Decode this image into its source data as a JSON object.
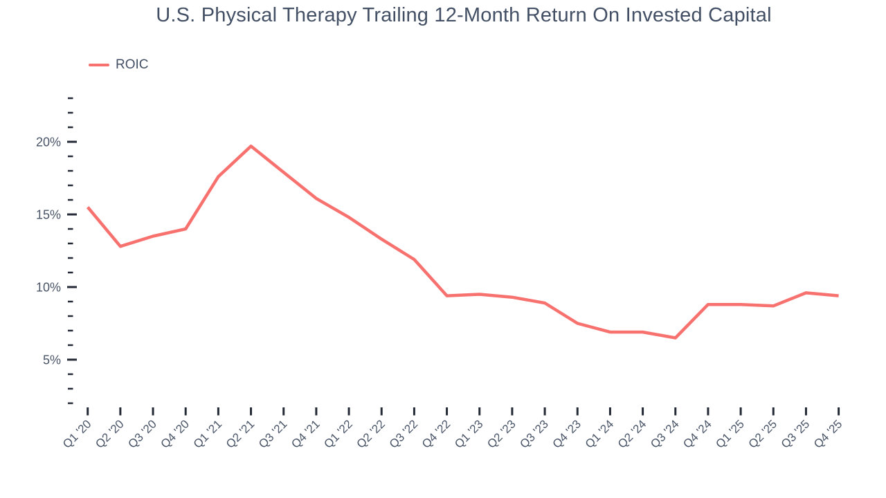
{
  "title": "U.S. Physical Therapy Trailing 12-Month Return On Invested Capital",
  "legend": {
    "label": "ROIC",
    "color": "#F7716E",
    "position": "top-left"
  },
  "colors": {
    "line": "#F7716E",
    "title_text": "#424F64",
    "axis_text": "#4A5568",
    "tick": "#232A36",
    "background": "#FFFFFF"
  },
  "chart_data": {
    "type": "line",
    "title": "U.S. Physical Therapy Trailing 12-Month Return On Invested Capital",
    "xlabel": "",
    "ylabel": "",
    "categories": [
      "Q1 '20",
      "Q2 '20",
      "Q3 '20",
      "Q4 '20",
      "Q1 '21",
      "Q2 '21",
      "Q3 '21",
      "Q4 '21",
      "Q1 '22",
      "Q2 '22",
      "Q3 '22",
      "Q4 '22",
      "Q1 '23",
      "Q2 '23",
      "Q3 '23",
      "Q4 '23",
      "Q1 '24",
      "Q2 '24",
      "Q3 '24",
      "Q4 '24",
      "Q1 '25",
      "Q2 '25",
      "Q3 '25",
      "Q4 '25"
    ],
    "series": [
      {
        "name": "ROIC",
        "color": "#F7716E",
        "values": [
          15.5,
          12.8,
          13.5,
          14.0,
          17.6,
          19.7,
          17.9,
          16.1,
          14.8,
          13.3,
          11.9,
          9.4,
          9.5,
          9.3,
          8.9,
          7.5,
          6.9,
          6.9,
          6.5,
          8.8,
          8.8,
          8.7,
          9.6,
          9.4
        ]
      }
    ],
    "y_axis": {
      "unit": "%",
      "labeled_ticks": [
        5,
        10,
        15,
        20
      ],
      "labeled_tick_format": [
        "5%",
        "10%",
        "15%",
        "20%"
      ],
      "minor_tick_step": 1,
      "range": [
        2,
        23
      ]
    },
    "grid": false,
    "legend_position": "top-left"
  }
}
